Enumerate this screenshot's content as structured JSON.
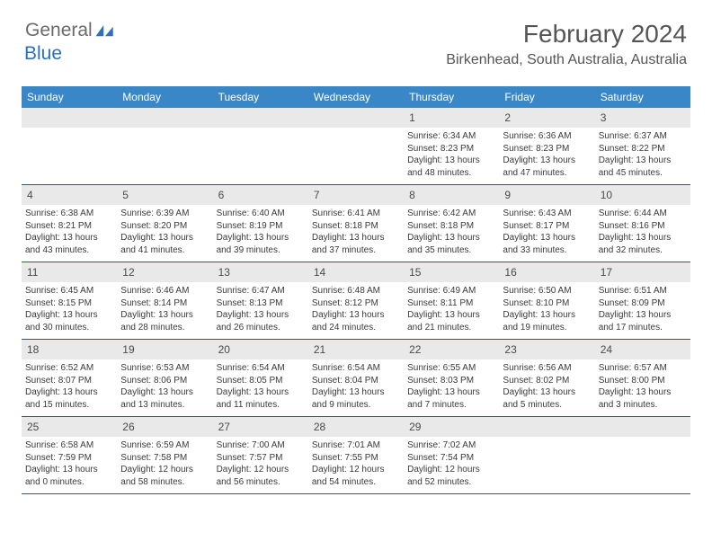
{
  "brand": {
    "word1": "General",
    "word2": "Blue",
    "word1_color": "#6b6b6b",
    "word2_color": "#2a73b8",
    "icon_color": "#2a73b8"
  },
  "title": {
    "month_year": "February 2024",
    "location": "Birkenhead, South Australia, Australia"
  },
  "colors": {
    "header_bg": "#3a87c7",
    "header_text": "#ffffff",
    "daynum_bg": "#e9e9e9",
    "row_border": "#2a5a8a",
    "body_text": "#3a3a3a"
  },
  "weekdays": [
    "Sunday",
    "Monday",
    "Tuesday",
    "Wednesday",
    "Thursday",
    "Friday",
    "Saturday"
  ],
  "leading_blanks": 4,
  "days": [
    {
      "n": "1",
      "sunrise": "Sunrise: 6:34 AM",
      "sunset": "Sunset: 8:23 PM",
      "daylight": "Daylight: 13 hours and 48 minutes."
    },
    {
      "n": "2",
      "sunrise": "Sunrise: 6:36 AM",
      "sunset": "Sunset: 8:23 PM",
      "daylight": "Daylight: 13 hours and 47 minutes."
    },
    {
      "n": "3",
      "sunrise": "Sunrise: 6:37 AM",
      "sunset": "Sunset: 8:22 PM",
      "daylight": "Daylight: 13 hours and 45 minutes."
    },
    {
      "n": "4",
      "sunrise": "Sunrise: 6:38 AM",
      "sunset": "Sunset: 8:21 PM",
      "daylight": "Daylight: 13 hours and 43 minutes."
    },
    {
      "n": "5",
      "sunrise": "Sunrise: 6:39 AM",
      "sunset": "Sunset: 8:20 PM",
      "daylight": "Daylight: 13 hours and 41 minutes."
    },
    {
      "n": "6",
      "sunrise": "Sunrise: 6:40 AM",
      "sunset": "Sunset: 8:19 PM",
      "daylight": "Daylight: 13 hours and 39 minutes."
    },
    {
      "n": "7",
      "sunrise": "Sunrise: 6:41 AM",
      "sunset": "Sunset: 8:18 PM",
      "daylight": "Daylight: 13 hours and 37 minutes."
    },
    {
      "n": "8",
      "sunrise": "Sunrise: 6:42 AM",
      "sunset": "Sunset: 8:18 PM",
      "daylight": "Daylight: 13 hours and 35 minutes."
    },
    {
      "n": "9",
      "sunrise": "Sunrise: 6:43 AM",
      "sunset": "Sunset: 8:17 PM",
      "daylight": "Daylight: 13 hours and 33 minutes."
    },
    {
      "n": "10",
      "sunrise": "Sunrise: 6:44 AM",
      "sunset": "Sunset: 8:16 PM",
      "daylight": "Daylight: 13 hours and 32 minutes."
    },
    {
      "n": "11",
      "sunrise": "Sunrise: 6:45 AM",
      "sunset": "Sunset: 8:15 PM",
      "daylight": "Daylight: 13 hours and 30 minutes."
    },
    {
      "n": "12",
      "sunrise": "Sunrise: 6:46 AM",
      "sunset": "Sunset: 8:14 PM",
      "daylight": "Daylight: 13 hours and 28 minutes."
    },
    {
      "n": "13",
      "sunrise": "Sunrise: 6:47 AM",
      "sunset": "Sunset: 8:13 PM",
      "daylight": "Daylight: 13 hours and 26 minutes."
    },
    {
      "n": "14",
      "sunrise": "Sunrise: 6:48 AM",
      "sunset": "Sunset: 8:12 PM",
      "daylight": "Daylight: 13 hours and 24 minutes."
    },
    {
      "n": "15",
      "sunrise": "Sunrise: 6:49 AM",
      "sunset": "Sunset: 8:11 PM",
      "daylight": "Daylight: 13 hours and 21 minutes."
    },
    {
      "n": "16",
      "sunrise": "Sunrise: 6:50 AM",
      "sunset": "Sunset: 8:10 PM",
      "daylight": "Daylight: 13 hours and 19 minutes."
    },
    {
      "n": "17",
      "sunrise": "Sunrise: 6:51 AM",
      "sunset": "Sunset: 8:09 PM",
      "daylight": "Daylight: 13 hours and 17 minutes."
    },
    {
      "n": "18",
      "sunrise": "Sunrise: 6:52 AM",
      "sunset": "Sunset: 8:07 PM",
      "daylight": "Daylight: 13 hours and 15 minutes."
    },
    {
      "n": "19",
      "sunrise": "Sunrise: 6:53 AM",
      "sunset": "Sunset: 8:06 PM",
      "daylight": "Daylight: 13 hours and 13 minutes."
    },
    {
      "n": "20",
      "sunrise": "Sunrise: 6:54 AM",
      "sunset": "Sunset: 8:05 PM",
      "daylight": "Daylight: 13 hours and 11 minutes."
    },
    {
      "n": "21",
      "sunrise": "Sunrise: 6:54 AM",
      "sunset": "Sunset: 8:04 PM",
      "daylight": "Daylight: 13 hours and 9 minutes."
    },
    {
      "n": "22",
      "sunrise": "Sunrise: 6:55 AM",
      "sunset": "Sunset: 8:03 PM",
      "daylight": "Daylight: 13 hours and 7 minutes."
    },
    {
      "n": "23",
      "sunrise": "Sunrise: 6:56 AM",
      "sunset": "Sunset: 8:02 PM",
      "daylight": "Daylight: 13 hours and 5 minutes."
    },
    {
      "n": "24",
      "sunrise": "Sunrise: 6:57 AM",
      "sunset": "Sunset: 8:00 PM",
      "daylight": "Daylight: 13 hours and 3 minutes."
    },
    {
      "n": "25",
      "sunrise": "Sunrise: 6:58 AM",
      "sunset": "Sunset: 7:59 PM",
      "daylight": "Daylight: 13 hours and 0 minutes."
    },
    {
      "n": "26",
      "sunrise": "Sunrise: 6:59 AM",
      "sunset": "Sunset: 7:58 PM",
      "daylight": "Daylight: 12 hours and 58 minutes."
    },
    {
      "n": "27",
      "sunrise": "Sunrise: 7:00 AM",
      "sunset": "Sunset: 7:57 PM",
      "daylight": "Daylight: 12 hours and 56 minutes."
    },
    {
      "n": "28",
      "sunrise": "Sunrise: 7:01 AM",
      "sunset": "Sunset: 7:55 PM",
      "daylight": "Daylight: 12 hours and 54 minutes."
    },
    {
      "n": "29",
      "sunrise": "Sunrise: 7:02 AM",
      "sunset": "Sunset: 7:54 PM",
      "daylight": "Daylight: 12 hours and 52 minutes."
    }
  ]
}
